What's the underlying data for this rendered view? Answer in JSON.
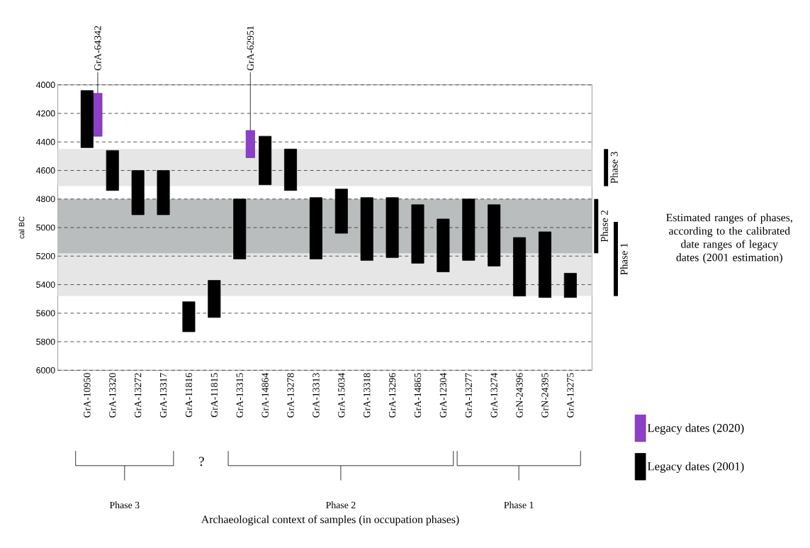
{
  "chart_data": {
    "type": "bar",
    "categories": [
      "GrA-10950",
      "GrA-13320",
      "GrA-13272",
      "GrA-13317",
      "GrA-11816",
      "GrA-11815",
      "GrA-13315",
      "GrA-14864",
      "GrA-13278",
      "GrA-13313",
      "GrA-15034",
      "GrA-13318",
      "GrA-13296",
      "GrA-14865",
      "GrA-12304",
      "GrA-13277",
      "GrA-13274",
      "GrN-24396",
      "GrN-24395",
      "GrA-13275"
    ],
    "series": [
      {
        "name": "Legacy dates (2020)",
        "color": "#8e3fc8",
        "base": [
          4060,
          null,
          null,
          null,
          null,
          null,
          4320,
          null,
          null,
          null,
          null,
          null,
          null,
          null,
          null,
          null,
          null,
          null,
          null,
          null
        ],
        "values": [
          300,
          null,
          null,
          null,
          null,
          null,
          190,
          null,
          null,
          null,
          null,
          null,
          null,
          null,
          null,
          null,
          null,
          null,
          null,
          null
        ]
      },
      {
        "name": "Legacy dates (2001)",
        "color": "#000000",
        "base": [
          4040,
          4460,
          4600,
          4600,
          5520,
          5370,
          4800,
          4360,
          4450,
          4790,
          4730,
          4790,
          4790,
          4840,
          4940,
          4800,
          4840,
          5070,
          5030,
          5320
        ],
        "values": [
          400,
          280,
          310,
          310,
          210,
          260,
          420,
          340,
          290,
          430,
          310,
          440,
          420,
          410,
          370,
          430,
          430,
          410,
          460,
          170
        ]
      }
    ],
    "ylim": [
      6000,
      4000
    ],
    "yticks": [
      4000,
      4200,
      4400,
      4600,
      4800,
      5000,
      5200,
      5400,
      5600,
      5800,
      6000
    ],
    "ylabel": "cal BC",
    "grid": "y",
    "legend": "bottom right",
    "bands": [
      {
        "axis": "y",
        "from": 4450,
        "to": 4710,
        "label": "Phase 3",
        "color": "#e6e6e6"
      },
      {
        "axis": "y",
        "from": 4960,
        "to": 5480,
        "label": "Phase 1",
        "color": "#e6e6e6"
      },
      {
        "axis": "y",
        "from": 4800,
        "to": 5180,
        "label": "Phase 2",
        "color": "#b9bdbd"
      }
    ],
    "annotations": [
      "Estimated ranges of phases, according to the calibrated date ranges of legacy dates (2001 estimation)",
      "Phase 3",
      "?",
      "Phase 2",
      "Phase 1",
      {
        "text": "GrA-64342",
        "y": 4060
      },
      {
        "text": "GrA-62951",
        "y": 4320
      },
      "Archaeological context of samples (in occupation phases)"
    ]
  }
}
